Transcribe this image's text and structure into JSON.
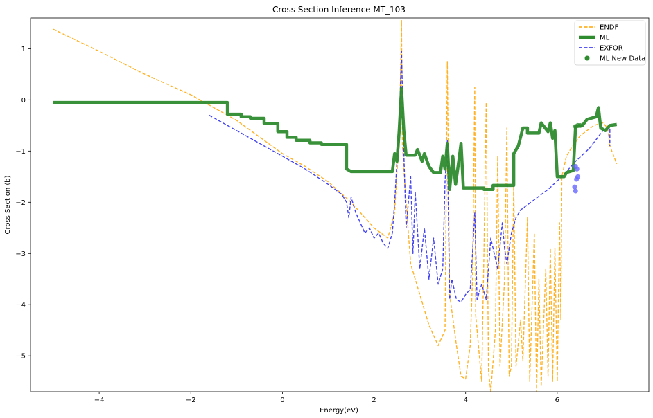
{
  "chart_data": {
    "type": "line",
    "title": "Cross Section Inference MT_103",
    "xlabel": "Energy(eV)",
    "ylabel": "Cross Section (b)",
    "xlim": [
      -5.5,
      8.0
    ],
    "ylim": [
      -5.7,
      1.6
    ],
    "xticks": [
      -4,
      -2,
      0,
      2,
      4,
      6
    ],
    "yticks": [
      1,
      0,
      -1,
      -2,
      -3,
      -4,
      -5
    ],
    "grid": false,
    "legend_position": "top-right",
    "series": [
      {
        "name": "ENDF",
        "style": "dashed",
        "color": "#ffa500",
        "points": [
          [
            -5.0,
            1.38
          ],
          [
            -4.0,
            0.95
          ],
          [
            -3.0,
            0.5
          ],
          [
            -2.0,
            0.1
          ],
          [
            -1.0,
            -0.4
          ],
          [
            0.0,
            -1.05
          ],
          [
            0.5,
            -1.3
          ],
          [
            1.0,
            -1.6
          ],
          [
            1.5,
            -2.0
          ],
          [
            2.0,
            -2.5
          ],
          [
            2.3,
            -2.7
          ],
          [
            2.45,
            -2.2
          ],
          [
            2.5,
            -1.4
          ],
          [
            2.55,
            -0.9
          ],
          [
            2.6,
            1.55
          ],
          [
            2.62,
            -0.9
          ],
          [
            2.7,
            -2.0
          ],
          [
            2.8,
            -3.2
          ],
          [
            3.0,
            -3.8
          ],
          [
            3.2,
            -4.4
          ],
          [
            3.4,
            -4.8
          ],
          [
            3.55,
            -4.5
          ],
          [
            3.6,
            0.75
          ],
          [
            3.65,
            -3.8
          ],
          [
            3.8,
            -4.8
          ],
          [
            3.9,
            -5.4
          ],
          [
            4.0,
            -5.45
          ],
          [
            4.1,
            -4.8
          ],
          [
            4.15,
            -3.5
          ],
          [
            4.2,
            0.25
          ],
          [
            4.22,
            -4.2
          ],
          [
            4.35,
            -5.5
          ],
          [
            4.4,
            -3.0
          ],
          [
            4.45,
            -0.05
          ],
          [
            4.5,
            -5.3
          ],
          [
            4.55,
            -5.7
          ],
          [
            4.65,
            -4.5
          ],
          [
            4.7,
            -1.1
          ],
          [
            4.75,
            -5.2
          ],
          [
            4.85,
            -3.5
          ],
          [
            4.9,
            -0.55
          ],
          [
            4.95,
            -5.4
          ],
          [
            5.0,
            -5.2
          ],
          [
            5.05,
            -1.6
          ],
          [
            5.1,
            -5.2
          ],
          [
            5.2,
            -4.3
          ],
          [
            5.25,
            -5.1
          ],
          [
            5.35,
            -2.3
          ],
          [
            5.4,
            -5.5
          ],
          [
            5.5,
            -2.6
          ],
          [
            5.55,
            -5.7
          ],
          [
            5.6,
            -3.5
          ],
          [
            5.65,
            -5.6
          ],
          [
            5.75,
            -3.3
          ],
          [
            5.8,
            -5.4
          ],
          [
            5.85,
            -2.9
          ],
          [
            5.9,
            -5.5
          ],
          [
            5.95,
            -2.9
          ],
          [
            6.0,
            -5.5
          ],
          [
            6.05,
            -2.4
          ],
          [
            6.08,
            -4.3
          ],
          [
            6.1,
            -1.5
          ],
          [
            6.2,
            -1.1
          ],
          [
            6.3,
            -0.95
          ],
          [
            6.5,
            -0.7
          ],
          [
            6.8,
            -0.5
          ],
          [
            7.0,
            -0.45
          ],
          [
            7.1,
            -0.55
          ],
          [
            7.15,
            -0.9
          ],
          [
            7.3,
            -1.25
          ]
        ]
      },
      {
        "name": "ML",
        "style": "solid",
        "color": "#2e8b2e",
        "points": [
          [
            -5.0,
            -0.05
          ],
          [
            -1.2,
            -0.05
          ],
          [
            -1.2,
            -0.28
          ],
          [
            -0.9,
            -0.28
          ],
          [
            -0.9,
            -0.33
          ],
          [
            -0.7,
            -0.33
          ],
          [
            -0.7,
            -0.36
          ],
          [
            -0.4,
            -0.36
          ],
          [
            -0.4,
            -0.46
          ],
          [
            -0.1,
            -0.46
          ],
          [
            -0.1,
            -0.62
          ],
          [
            0.1,
            -0.62
          ],
          [
            0.1,
            -0.73
          ],
          [
            0.3,
            -0.73
          ],
          [
            0.3,
            -0.79
          ],
          [
            0.6,
            -0.79
          ],
          [
            0.6,
            -0.84
          ],
          [
            0.85,
            -0.84
          ],
          [
            0.85,
            -0.87
          ],
          [
            1.4,
            -0.87
          ],
          [
            1.4,
            -1.35
          ],
          [
            1.5,
            -1.4
          ],
          [
            2.4,
            -1.4
          ],
          [
            2.45,
            -1.05
          ],
          [
            2.5,
            -1.2
          ],
          [
            2.55,
            -0.6
          ],
          [
            2.6,
            0.22
          ],
          [
            2.65,
            -0.6
          ],
          [
            2.7,
            -1.08
          ],
          [
            2.9,
            -1.08
          ],
          [
            2.95,
            -0.97
          ],
          [
            3.05,
            -1.2
          ],
          [
            3.1,
            -1.05
          ],
          [
            3.2,
            -1.3
          ],
          [
            3.3,
            -1.42
          ],
          [
            3.45,
            -1.42
          ],
          [
            3.5,
            -1.1
          ],
          [
            3.55,
            -1.35
          ],
          [
            3.6,
            -0.85
          ],
          [
            3.65,
            -1.75
          ],
          [
            3.72,
            -1.1
          ],
          [
            3.78,
            -1.65
          ],
          [
            3.85,
            -1.2
          ],
          [
            3.9,
            -0.85
          ],
          [
            3.95,
            -1.72
          ],
          [
            4.4,
            -1.72
          ],
          [
            4.4,
            -1.75
          ],
          [
            4.6,
            -1.75
          ],
          [
            4.6,
            -1.67
          ],
          [
            5.05,
            -1.67
          ],
          [
            5.05,
            -1.05
          ],
          [
            5.15,
            -0.9
          ],
          [
            5.25,
            -0.55
          ],
          [
            5.35,
            -0.55
          ],
          [
            5.35,
            -0.65
          ],
          [
            5.6,
            -0.65
          ],
          [
            5.65,
            -0.45
          ],
          [
            5.8,
            -0.62
          ],
          [
            5.85,
            -0.45
          ],
          [
            5.9,
            -0.75
          ],
          [
            5.95,
            -0.6
          ],
          [
            6.0,
            -1.5
          ],
          [
            6.15,
            -1.5
          ],
          [
            6.2,
            -1.42
          ],
          [
            6.35,
            -1.38
          ],
          [
            6.4,
            -0.52
          ],
          [
            6.55,
            -0.5
          ],
          [
            6.65,
            -0.38
          ],
          [
            6.85,
            -0.33
          ],
          [
            6.9,
            -0.15
          ],
          [
            6.95,
            -0.55
          ],
          [
            7.05,
            -0.6
          ],
          [
            7.15,
            -0.5
          ],
          [
            7.3,
            -0.48
          ]
        ]
      },
      {
        "name": "EXFOR",
        "style": "dashed",
        "color": "#2222ee",
        "points": [
          [
            -1.6,
            -0.3
          ],
          [
            -1.0,
            -0.6
          ],
          [
            -0.5,
            -0.85
          ],
          [
            0.0,
            -1.1
          ],
          [
            0.5,
            -1.35
          ],
          [
            1.0,
            -1.65
          ],
          [
            1.3,
            -1.85
          ],
          [
            1.4,
            -2.0
          ],
          [
            1.45,
            -2.3
          ],
          [
            1.5,
            -1.9
          ],
          [
            1.6,
            -2.2
          ],
          [
            1.7,
            -2.4
          ],
          [
            1.8,
            -2.6
          ],
          [
            1.9,
            -2.5
          ],
          [
            2.0,
            -2.7
          ],
          [
            2.1,
            -2.6
          ],
          [
            2.2,
            -2.8
          ],
          [
            2.3,
            -2.9
          ],
          [
            2.4,
            -2.6
          ],
          [
            2.45,
            -2.0
          ],
          [
            2.5,
            -1.2
          ],
          [
            2.55,
            -0.5
          ],
          [
            2.6,
            0.95
          ],
          [
            2.65,
            -1.0
          ],
          [
            2.7,
            -2.5
          ],
          [
            2.8,
            -1.5
          ],
          [
            2.85,
            -3.0
          ],
          [
            2.9,
            -1.8
          ],
          [
            3.0,
            -3.3
          ],
          [
            3.1,
            -2.5
          ],
          [
            3.2,
            -3.5
          ],
          [
            3.3,
            -2.7
          ],
          [
            3.4,
            -3.6
          ],
          [
            3.5,
            -3.3
          ],
          [
            3.55,
            -1.6
          ],
          [
            3.6,
            -0.8
          ],
          [
            3.65,
            -3.9
          ],
          [
            3.7,
            -3.5
          ],
          [
            3.8,
            -3.9
          ],
          [
            3.9,
            -3.95
          ],
          [
            4.0,
            -3.8
          ],
          [
            4.1,
            -3.7
          ],
          [
            4.15,
            -3.0
          ],
          [
            4.2,
            -2.2
          ],
          [
            4.25,
            -3.9
          ],
          [
            4.35,
            -3.6
          ],
          [
            4.45,
            -3.9
          ],
          [
            4.55,
            -2.7
          ],
          [
            4.6,
            -2.9
          ],
          [
            4.7,
            -3.3
          ],
          [
            4.8,
            -2.4
          ],
          [
            4.85,
            -2.9
          ],
          [
            4.9,
            -3.2
          ],
          [
            5.0,
            -2.6
          ],
          [
            5.1,
            -2.3
          ],
          [
            5.2,
            -2.15
          ],
          [
            5.5,
            -1.95
          ],
          [
            5.8,
            -1.75
          ],
          [
            6.1,
            -1.5
          ],
          [
            6.4,
            -1.2
          ],
          [
            6.7,
            -0.95
          ],
          [
            7.0,
            -0.6
          ],
          [
            7.15,
            -0.55
          ],
          [
            7.15,
            -0.9
          ]
        ]
      }
    ],
    "scatter_series": [
      {
        "name": "ML New Data",
        "color": "#2e8b2e",
        "points": [
          [
            6.4,
            -0.52
          ],
          [
            6.45,
            -0.5
          ],
          [
            6.5,
            -0.5
          ]
        ]
      },
      {
        "name": "",
        "color": "#6666ff",
        "points": [
          [
            6.4,
            -1.3
          ],
          [
            6.43,
            -1.35
          ],
          [
            6.45,
            -1.5
          ],
          [
            6.42,
            -1.55
          ],
          [
            6.38,
            -1.7
          ],
          [
            6.4,
            -1.78
          ]
        ]
      }
    ]
  }
}
